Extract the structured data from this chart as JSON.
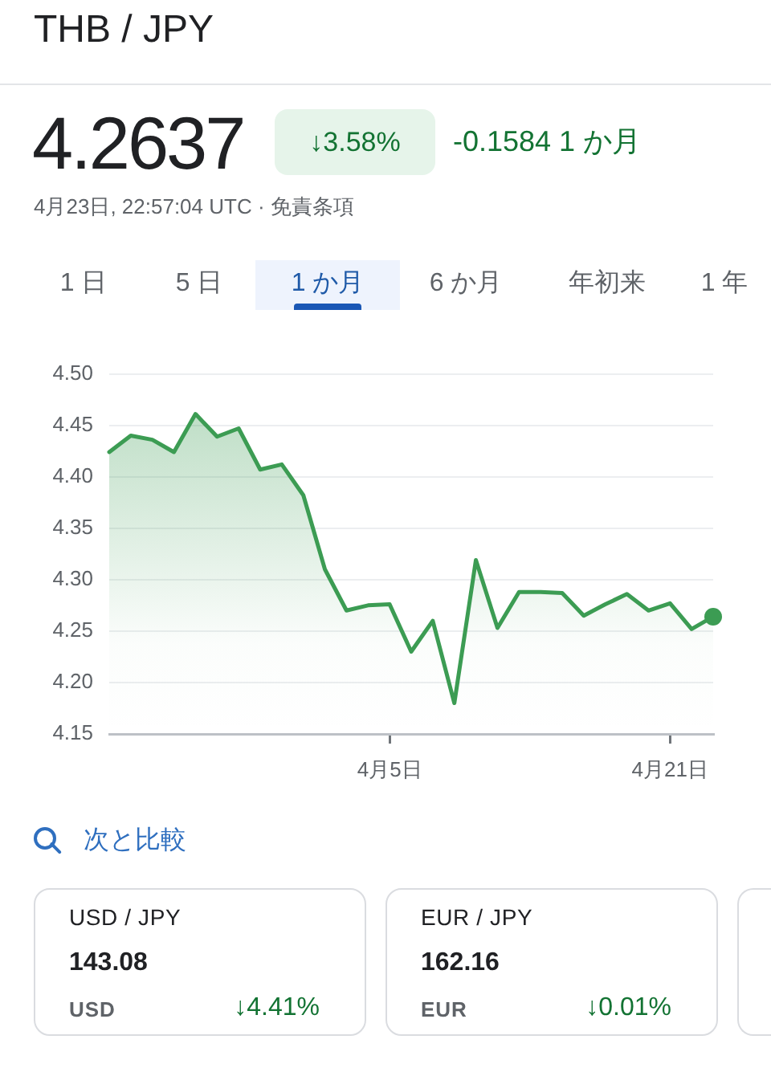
{
  "chart_data": [
    {
      "type": "area",
      "title": "THB / JPY",
      "annotations": [
        "4.2637",
        "↓3.58%",
        "-0.1584 1 か月",
        "4月23日, 22:57:04 UTC · 免責条項",
        "1 日",
        "5 日",
        "1 か月",
        "6 か月",
        "年初来",
        "1 年",
        "次と比較"
      ],
      "categories": [
        null,
        null,
        null,
        null,
        null,
        null,
        null,
        null,
        null,
        null,
        null,
        null,
        null,
        "4月5日",
        null,
        null,
        null,
        null,
        null,
        null,
        null,
        null,
        null,
        null,
        null,
        null,
        "4月21日",
        null,
        null
      ],
      "series": [
        {
          "color": "#3c9c53",
          "values": [
            4.424,
            4.44,
            4.436,
            4.424,
            4.461,
            4.439,
            4.447,
            4.407,
            4.412,
            4.382,
            4.31,
            4.27,
            4.275,
            4.276,
            4.23,
            4.26,
            4.18,
            4.319,
            4.253,
            4.288,
            4.288,
            4.287,
            4.265,
            4.276,
            4.286,
            4.27,
            4.277,
            4.252,
            4.264
          ]
        }
      ],
      "ylim": [
        4.15,
        4.5
      ],
      "yticks": [
        4.15,
        {
          "value": 4.2,
          "label": "4.20"
        },
        4.25,
        {
          "value": 4.3,
          "label": "4.30"
        },
        4.35,
        {
          "value": 4.4,
          "label": "4.40"
        },
        4.45,
        {
          "value": 4.5,
          "label": "4.50"
        }
      ],
      "grid": "y"
    },
    {
      "type": "other",
      "title": "USD / JPY",
      "annotations": [
        "143.08",
        "USD",
        "↓4.41%"
      ]
    },
    {
      "type": "other",
      "title": "EUR / JPY",
      "annotations": [
        "162.16",
        "EUR",
        "↓0.01%"
      ]
    }
  ]
}
